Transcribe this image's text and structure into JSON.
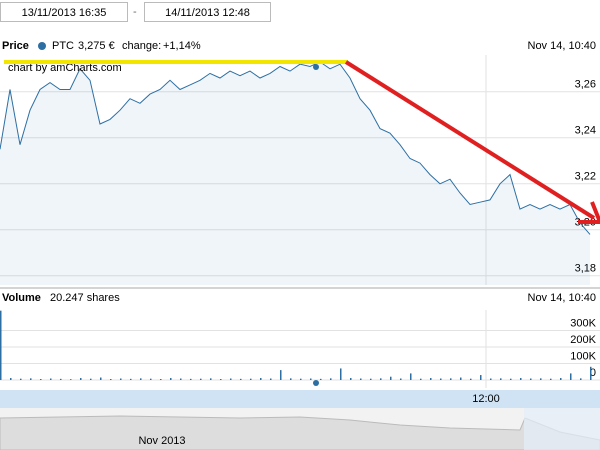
{
  "inputs": {
    "from": "13/11/2013 16:35",
    "separator": "-",
    "to": "14/11/2013 12:48"
  },
  "scroller": {
    "label": "Nov 2013"
  },
  "chart_data": [
    {
      "type": "line",
      "title": "Price",
      "legend_value": "3,275 €",
      "change_label": "change:",
      "change": "+1,14%",
      "date_label": "Nov 14, 10:40",
      "credit": "chart by amCharts.com",
      "series": [
        {
          "name": "PTC",
          "color": "#2d6fa3",
          "values": [
            3.235,
            3.261,
            3.237,
            3.252,
            3.261,
            3.264,
            3.261,
            3.261,
            3.27,
            3.265,
            3.246,
            3.248,
            3.252,
            3.257,
            3.255,
            3.259,
            3.261,
            3.265,
            3.261,
            3.263,
            3.265,
            3.268,
            3.266,
            3.269,
            3.267,
            3.269,
            3.266,
            3.268,
            3.271,
            3.269,
            3.272,
            3.271,
            3.273,
            3.27,
            3.272,
            3.266,
            3.257,
            3.252,
            3.244,
            3.242,
            3.237,
            3.231,
            3.229,
            3.224,
            3.22,
            3.222,
            3.216,
            3.211,
            3.212,
            3.213,
            3.22,
            3.224,
            3.209,
            3.211,
            3.209,
            3.211,
            3.209,
            3.211,
            3.203,
            3.198
          ]
        }
      ],
      "ylim": [
        3.176,
        3.276
      ],
      "yticks": [
        {
          "value": 3.18,
          "label": "3,18"
        },
        {
          "value": 3.2,
          "label": "3,20"
        },
        {
          "value": 3.22,
          "label": "3,22"
        },
        {
          "value": 3.24,
          "label": "3,24"
        },
        {
          "value": 3.26,
          "label": "3,26"
        }
      ],
      "xticks": [
        {
          "value": 48.6,
          "label": "12:00"
        }
      ],
      "grid": true
    },
    {
      "type": "bar",
      "title": "Volume",
      "legend_value": "20.247 shares",
      "date_label": "Nov 14, 10:40",
      "color": "#2d6fa3",
      "values": [
        420000,
        12000,
        8000,
        10000,
        6000,
        9000,
        7000,
        5000,
        12000,
        8000,
        15000,
        6000,
        9000,
        7000,
        10000,
        8000,
        6000,
        12000,
        9000,
        7000,
        8000,
        10000,
        6000,
        9000,
        7000,
        8000,
        12000,
        9000,
        60000,
        10000,
        8000,
        9000,
        7000,
        10000,
        70000,
        12000,
        9000,
        8000,
        10000,
        20000,
        9000,
        40000,
        8000,
        12000,
        9000,
        10000,
        15000,
        8000,
        30000,
        9000,
        10000,
        8000,
        12000,
        9000,
        10000,
        8000,
        12000,
        40000,
        10000,
        80000
      ],
      "ylim": [
        0,
        424000
      ],
      "yticks": [
        0,
        {
          "value": 100000,
          "label": "100K"
        },
        {
          "value": 200000,
          "label": "200K"
        },
        {
          "value": 300000,
          "label": "300K"
        }
      ]
    }
  ]
}
